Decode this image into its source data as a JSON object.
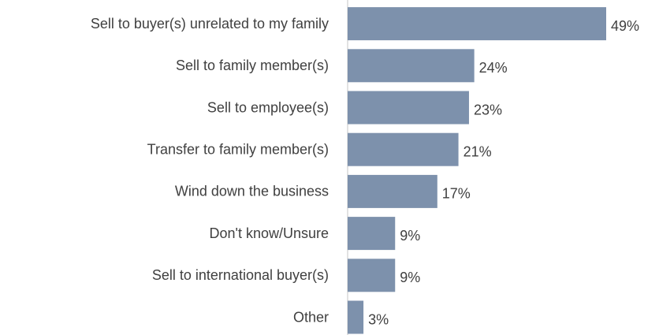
{
  "chart_data": {
    "type": "hbar",
    "categories": [
      "Sell to buyer(s) unrelated to my family",
      "Sell to family member(s)",
      "Sell to employee(s)",
      "Transfer to family member(s)",
      "Wind down the business",
      "Don't know/Unsure",
      "Sell to international buyer(s)",
      "Other"
    ],
    "values": [
      49,
      24,
      23,
      21,
      17,
      9,
      9,
      3
    ],
    "value_labels": [
      "49%",
      "24%",
      "23%",
      "21%",
      "17%",
      "9%",
      "9%",
      "3%"
    ],
    "color": "#7d91ac"
  }
}
